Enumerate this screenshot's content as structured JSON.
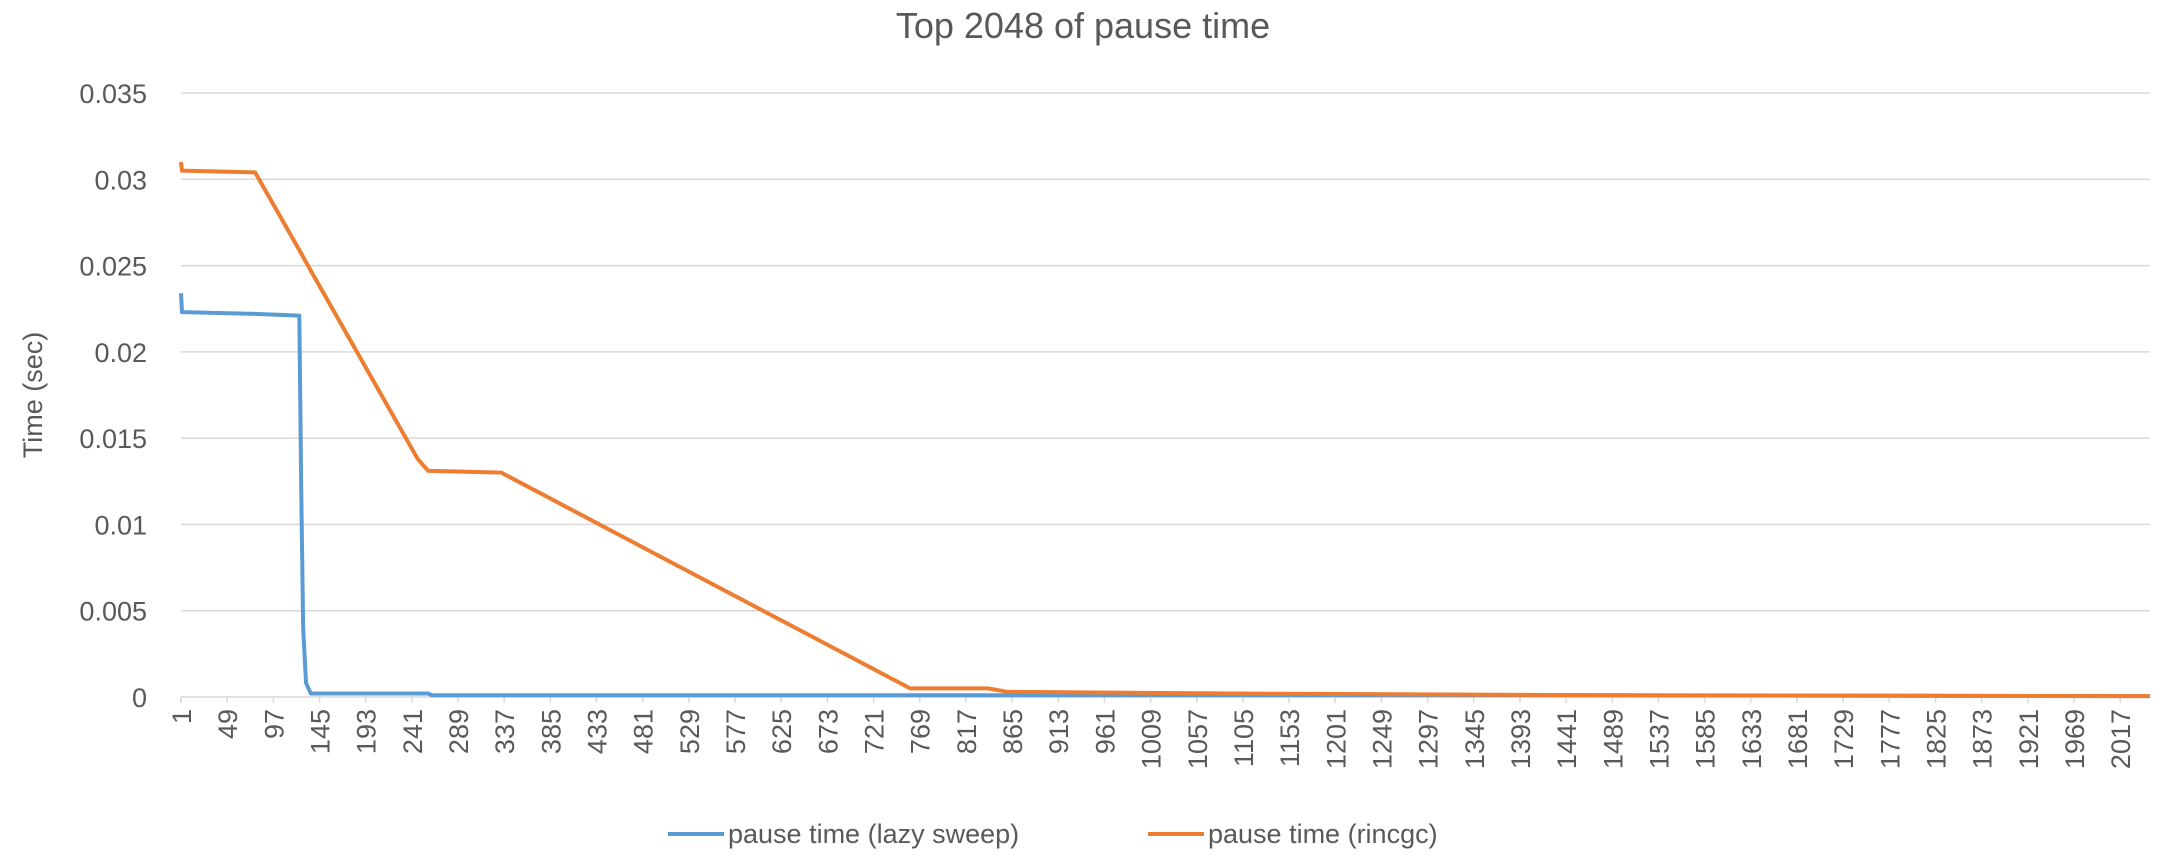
{
  "chart_data": {
    "type": "line",
    "title": "Top 2048 of pause time",
    "y_label": "Time (sec)",
    "x": [
      1,
      2,
      78,
      124,
      126,
      128,
      131,
      136,
      247,
      258,
      262,
      334,
      759,
      840,
      860,
      1100,
      1500,
      2048
    ],
    "series": [
      {
        "name": "pause time (lazy sweep)",
        "color": "#5b9bd5",
        "values": [
          0.0234,
          0.0223,
          0.0222,
          0.0221,
          0.012,
          0.004,
          0.0008,
          0.0002,
          0.0002,
          0.0002,
          0.0001,
          0.0001,
          0.0001,
          0.0001,
          0.0001,
          0.0001,
          0.0001,
          5e-05
        ]
      },
      {
        "name": "pause time (rincgc)",
        "color": "#ed7d31",
        "values": [
          0.031,
          0.0305,
          0.0304,
          0.0259,
          0.0257,
          0.0255,
          0.0252,
          0.0247,
          0.0138,
          0.0131,
          0.0131,
          0.013,
          0.0005,
          0.0005,
          0.0003,
          0.0002,
          0.0001,
          5e-05
        ]
      }
    ],
    "xlim": [
      1,
      2048
    ],
    "xticks": [
      1,
      49,
      97,
      145,
      193,
      241,
      289,
      337,
      385,
      433,
      481,
      529,
      577,
      625,
      673,
      721,
      769,
      817,
      865,
      913,
      961,
      1009,
      1057,
      1105,
      1153,
      1201,
      1249,
      1297,
      1345,
      1393,
      1441,
      1489,
      1537,
      1585,
      1633,
      1681,
      1729,
      1777,
      1825,
      1873,
      1921,
      1969,
      2017
    ],
    "ylim": [
      0,
      0.035
    ],
    "yticks": [
      0,
      0.005,
      0.01,
      0.015,
      0.02,
      0.025,
      0.03,
      0.035
    ],
    "grid": true,
    "legend": "bottom"
  }
}
